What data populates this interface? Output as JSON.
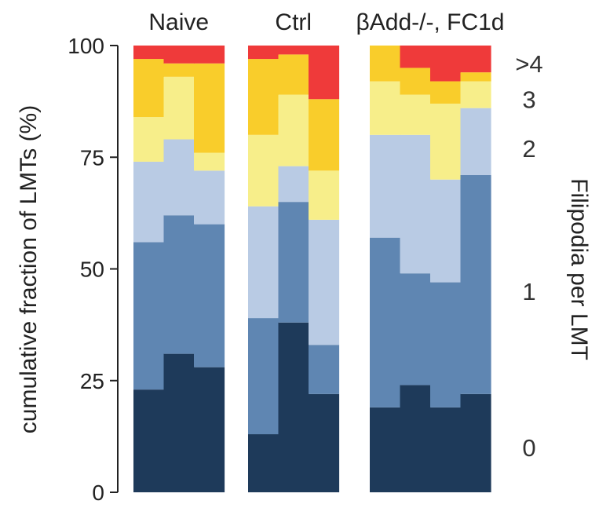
{
  "chart_data": {
    "type": "bar",
    "subtype": "stacked-100-percent",
    "ylabel": "cumulative fraction of LMTs (%)",
    "right_label": "Filipodia per LMT",
    "ylim": [
      0,
      100
    ],
    "yticks": [
      0,
      25,
      50,
      75,
      100
    ],
    "ytick_labels": [
      "0",
      "25",
      "50",
      "75",
      "100"
    ],
    "grid": false,
    "legend_position": "right",
    "categories": [
      {
        "label": "0",
        "color": "#1e3a5a",
        "label_at": 10
      },
      {
        "label": "1",
        "color": "#5f86b2",
        "label_at": 45
      },
      {
        "label": "2",
        "color": "#b9cbe4",
        "label_at": 77
      },
      {
        "label": "3",
        "color": "#f7ee8a",
        "label_at": 88
      },
      {
        "label": ">4",
        "color": "#f9cd2b",
        "label_at": 96
      },
      {
        "label": "",
        "color": "#ef3a3a"
      }
    ],
    "groups": [
      {
        "name": "Naive",
        "bars": [
          [
            23,
            56,
            74,
            84,
            97
          ],
          [
            31,
            62,
            79,
            93,
            96
          ],
          [
            28,
            60,
            72,
            76,
            96
          ]
        ]
      },
      {
        "name": "Ctrl",
        "bars": [
          [
            13,
            39,
            64,
            80,
            97
          ],
          [
            38,
            65,
            73,
            89,
            98
          ],
          [
            22,
            33,
            61,
            72,
            88
          ]
        ]
      },
      {
        "name": "βAdd-/-, FC1d",
        "bars": [
          [
            19,
            57,
            80,
            92,
            100
          ],
          [
            24,
            49,
            80,
            89,
            95
          ],
          [
            19,
            47,
            70,
            87,
            92
          ],
          [
            22,
            71,
            86,
            92,
            94
          ]
        ]
      }
    ]
  }
}
